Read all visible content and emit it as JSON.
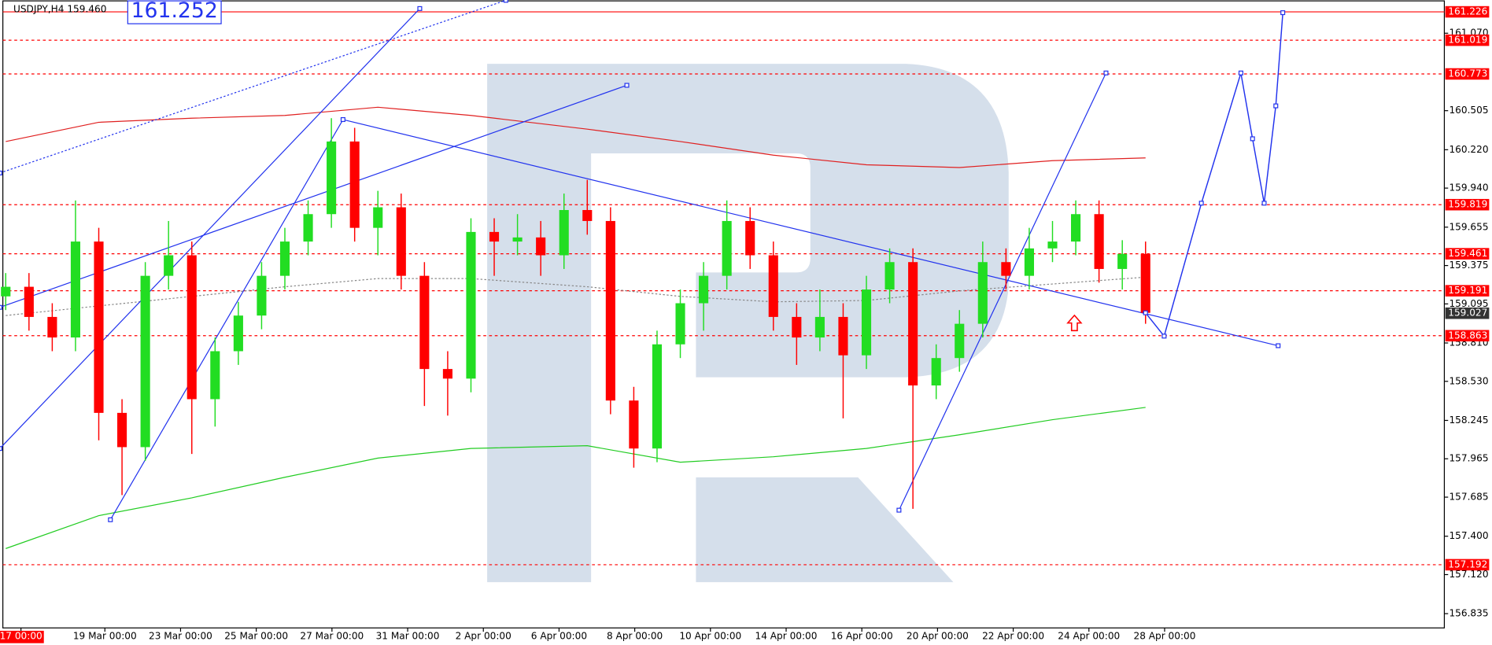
{
  "chart_data": {
    "type": "candlestick",
    "title": "USDJPY,H4 159.460",
    "big_label": "161.252",
    "ylim": [
      156.717,
      161.306
    ],
    "yticks": [
      {
        "value": 161.07,
        "label": "161.070"
      },
      160.505,
      {
        "value": 160.22,
        "label": "160.220"
      },
      {
        "value": 159.94,
        "label": "159.940"
      },
      159.655,
      159.375,
      159.095,
      {
        "value": 158.81,
        "label": "158.810"
      },
      {
        "value": 158.53,
        "label": "158.530"
      },
      158.245,
      157.965,
      157.685,
      {
        "value": 157.4,
        "label": "157.400"
      },
      {
        "value": 157.12,
        "label": "157.120"
      },
      156.835
    ],
    "x_labels": [
      "17 00:00",
      "19 Mar 00:00",
      "23 Mar 00:00",
      "25 Mar 00:00",
      "27 Mar 00:00",
      "31 Mar 00:00",
      "2 Apr 00:00",
      "6 Apr 00:00",
      "8 Apr 00:00",
      "10 Apr 00:00",
      "14 Apr 00:00",
      "16 Apr 00:00",
      "20 Apr 00:00",
      "22 Apr 00:00",
      "24 Apr 00:00",
      "28 Apr 00:00"
    ],
    "up_color": "#22dd22",
    "down_color": "#ff0000",
    "open": [
      159.15,
      159.22,
      159.0,
      158.85,
      159.55,
      158.3,
      158.05,
      159.3,
      159.45,
      158.4,
      158.75,
      159.01,
      159.3,
      159.55,
      159.75,
      160.28,
      159.65,
      159.8,
      159.3,
      158.62,
      158.55,
      159.62,
      159.55,
      159.58,
      159.45,
      159.78,
      159.7,
      158.39,
      158.04,
      158.8,
      159.1,
      159.3,
      159.7,
      159.45,
      159.0,
      158.85,
      159.0,
      158.72,
      159.2,
      159.4,
      158.5,
      158.7,
      158.95,
      159.4,
      159.3,
      159.5,
      159.55,
      159.75,
      159.35,
      159.46
    ],
    "high": [
      159.32,
      159.32,
      159.1,
      159.85,
      159.65,
      158.4,
      159.4,
      159.7,
      159.55,
      158.85,
      159.11,
      159.4,
      159.65,
      159.85,
      160.45,
      160.38,
      159.92,
      159.9,
      159.4,
      158.75,
      159.72,
      159.72,
      159.75,
      159.7,
      159.9,
      160.0,
      159.8,
      158.49,
      158.9,
      159.2,
      159.4,
      159.85,
      159.8,
      159.55,
      159.1,
      159.2,
      159.1,
      159.3,
      159.5,
      159.5,
      158.8,
      159.05,
      159.55,
      159.5,
      159.65,
      159.7,
      159.85,
      159.85,
      159.56,
      159.55
    ],
    "low": [
      159.05,
      158.9,
      158.75,
      158.75,
      158.1,
      157.7,
      157.95,
      159.2,
      158.0,
      158.2,
      158.65,
      158.91,
      159.2,
      159.45,
      159.65,
      159.55,
      159.45,
      159.2,
      158.35,
      158.28,
      158.45,
      159.3,
      159.45,
      159.3,
      159.35,
      159.6,
      158.29,
      157.9,
      157.94,
      158.7,
      158.9,
      159.2,
      159.35,
      158.9,
      158.65,
      158.75,
      158.26,
      158.62,
      159.1,
      157.6,
      158.4,
      158.6,
      158.85,
      159.2,
      159.2,
      159.4,
      159.45,
      159.25,
      159.2,
      158.95
    ],
    "close": [
      159.22,
      159.0,
      158.85,
      159.55,
      158.3,
      158.05,
      159.3,
      159.45,
      158.4,
      158.75,
      159.01,
      159.3,
      159.55,
      159.75,
      160.28,
      159.65,
      159.8,
      159.3,
      158.62,
      158.55,
      159.62,
      159.55,
      159.58,
      159.45,
      159.78,
      159.7,
      158.39,
      158.04,
      158.8,
      159.1,
      159.3,
      159.7,
      159.45,
      159.0,
      158.85,
      159.0,
      158.72,
      159.2,
      159.4,
      158.5,
      158.7,
      158.95,
      159.4,
      159.3,
      159.5,
      159.55,
      159.75,
      159.35,
      159.46,
      159.03
    ],
    "levels": [
      161.226,
      161.019,
      160.773,
      159.819,
      159.461,
      159.191,
      158.863,
      157.192
    ],
    "level_styles": [
      "solid",
      "dashed",
      "dashed",
      "dashed",
      "dashed",
      "dashed",
      "dashed",
      "dashed"
    ],
    "level_color": "#ff0000",
    "current_price": 159.027,
    "moving_averages": [
      {
        "color": "#e02020",
        "style": "solid",
        "x": [
          0,
          4,
          8,
          12,
          16,
          20,
          25,
          29,
          33,
          37,
          41,
          45,
          49
        ],
        "values": [
          160.28,
          160.42,
          160.45,
          160.47,
          160.53,
          160.47,
          160.37,
          160.28,
          160.18,
          160.11,
          160.09,
          160.14,
          160.16
        ]
      },
      {
        "color": "#22cc22",
        "style": "solid",
        "x": [
          0,
          4,
          8,
          12,
          16,
          20,
          25,
          29,
          33,
          37,
          41,
          45,
          49
        ],
        "values": [
          157.31,
          157.55,
          157.68,
          157.83,
          157.97,
          158.04,
          158.06,
          157.94,
          157.98,
          158.04,
          158.14,
          158.25,
          158.34
        ]
      },
      {
        "color": "#888888",
        "style": "dotted",
        "x": [
          0,
          4,
          8,
          12,
          16,
          20,
          25,
          29,
          33,
          37,
          41,
          45,
          49
        ],
        "values": [
          159.01,
          159.08,
          159.15,
          159.22,
          159.28,
          159.28,
          159.22,
          159.15,
          159.11,
          159.12,
          159.19,
          159.24,
          159.29
        ]
      }
    ],
    "trendlines": [
      {
        "style": "solid",
        "x": [
          -0.25,
          17.8
        ],
        "values": [
          158.04,
          161.25
        ]
      },
      {
        "style": "dotted",
        "x": [
          -0.25,
          21.5
        ],
        "values": [
          160.05,
          161.31
        ]
      },
      {
        "style": "solid",
        "x": [
          -0.25,
          26.7
        ],
        "values": [
          159.07,
          160.69
        ]
      },
      {
        "style": "solid",
        "x": [
          4.5,
          14.5,
          54.7
        ],
        "values": [
          157.52,
          160.44,
          158.79
        ]
      },
      {
        "style": "solid",
        "x": [
          38.4,
          47.3
        ],
        "values": [
          157.59,
          160.78
        ]
      }
    ],
    "forecast": {
      "color": "#2233ee",
      "x": [
        49,
        49.8,
        51.4,
        53.1,
        53.6,
        54.1,
        54.6,
        54.9
      ],
      "values": [
        159.03,
        158.86,
        159.83,
        160.78,
        160.3,
        159.83,
        160.54,
        161.22
      ]
    }
  }
}
